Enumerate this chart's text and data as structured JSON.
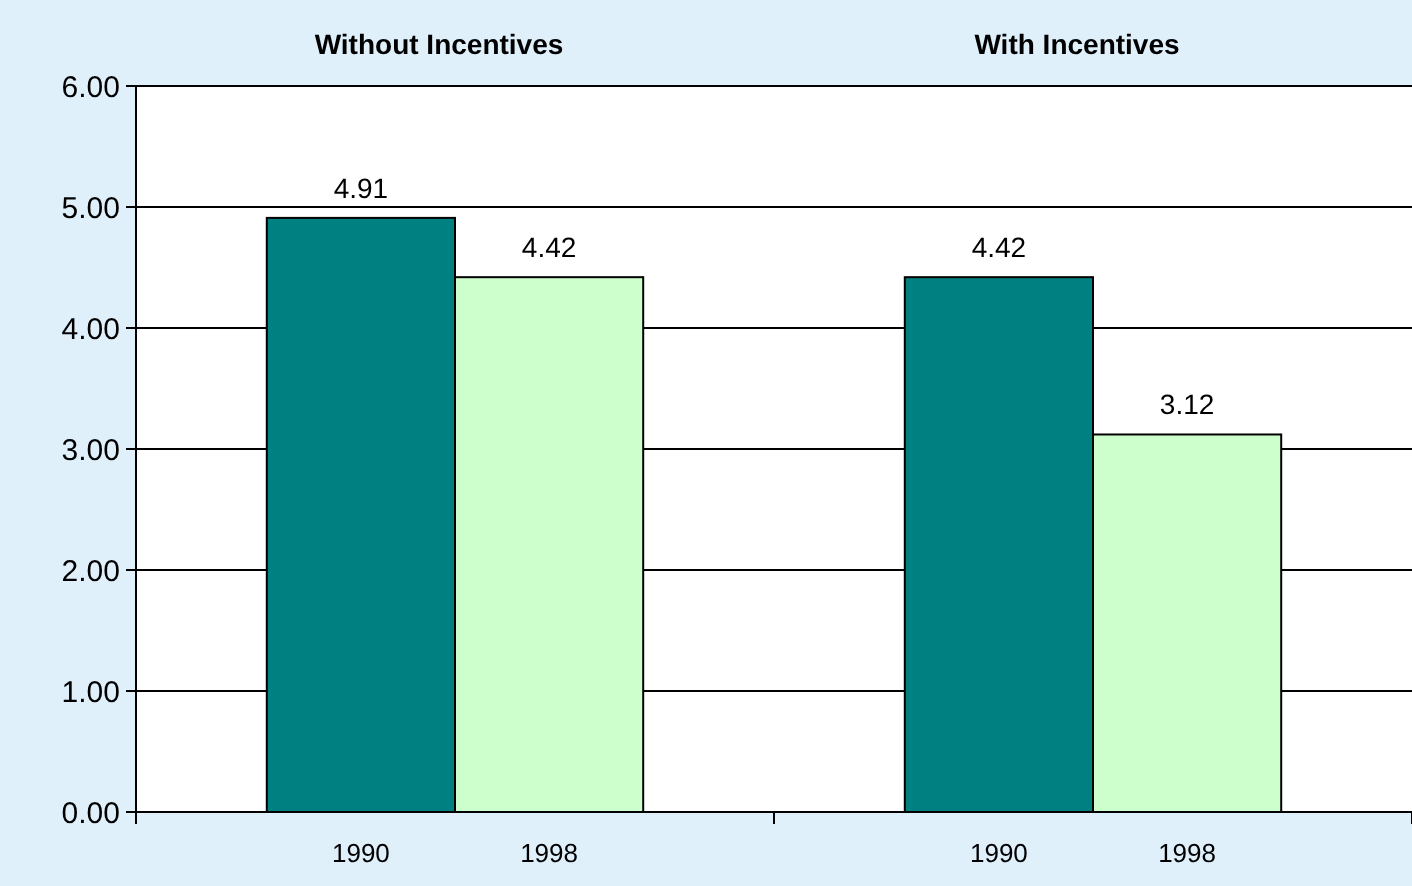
{
  "chart_data": {
    "type": "bar",
    "categories": [
      "Without Incentives",
      "With Incentives"
    ],
    "series": [
      {
        "name": "1990",
        "color": "#008080",
        "values": [
          4.91,
          4.42
        ]
      },
      {
        "name": "1998",
        "color": "#ccffcc",
        "values": [
          4.42,
          3.12
        ]
      }
    ],
    "ylim": [
      0,
      6
    ],
    "yticks": [
      {
        "value": 0,
        "label": "0.00"
      },
      {
        "value": 1,
        "label": "1.00"
      },
      {
        "value": 2,
        "label": "2.00"
      },
      {
        "value": 3,
        "label": "3.00"
      },
      {
        "value": 4,
        "label": "4.00"
      },
      {
        "value": 5,
        "label": "5.00"
      },
      {
        "value": 6,
        "label": "6.00"
      }
    ],
    "grid": "y",
    "data_labels": true
  }
}
